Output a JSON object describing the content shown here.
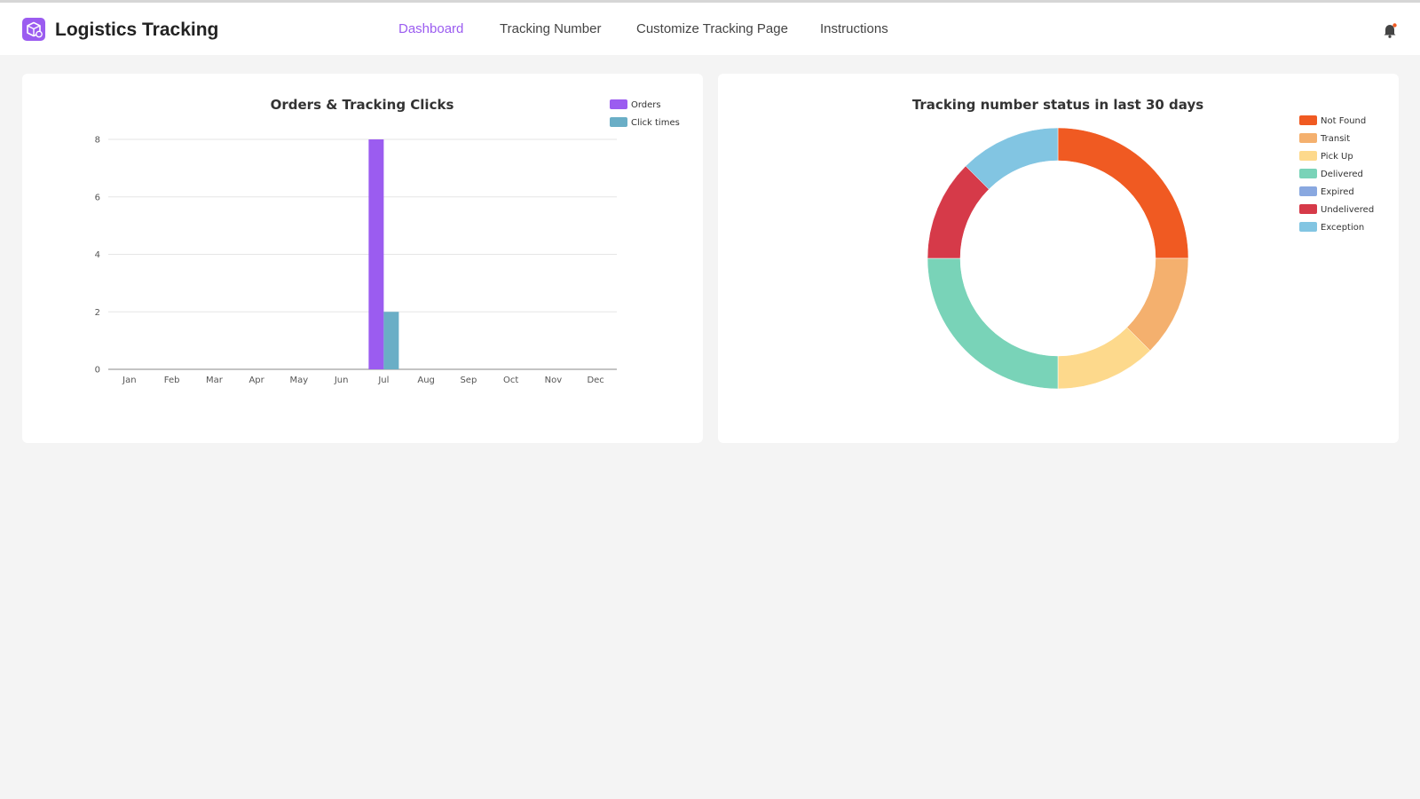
{
  "header": {
    "app_title": "Logistics Tracking",
    "logo_icon": "package-icon",
    "notification_icon": "bell-icon",
    "nav": [
      {
        "label": "Dashboard",
        "active": true
      },
      {
        "label": "Tracking Number",
        "active": false
      },
      {
        "label": "Customize Tracking Page",
        "active": false
      },
      {
        "label": "Instructions",
        "active": false
      }
    ]
  },
  "colors": {
    "accent": "#9b5cf0",
    "orders": "#9b5cf0",
    "click_times": "#6aaec6",
    "not_found": "#f05a22",
    "transit": "#f4b06e",
    "pick_up": "#fdd98c",
    "delivered": "#79d3b8",
    "expired": "#89a8e0",
    "undelivered": "#d63a49",
    "exception": "#82c5e2"
  },
  "chart_data": [
    {
      "type": "bar",
      "title": "Orders & Tracking Clicks",
      "categories": [
        "Jan",
        "Feb",
        "Mar",
        "Apr",
        "May",
        "Jun",
        "Jul",
        "Aug",
        "Sep",
        "Oct",
        "Nov",
        "Dec"
      ],
      "series": [
        {
          "name": "Orders",
          "values": [
            0,
            0,
            0,
            0,
            0,
            0,
            8,
            0,
            0,
            0,
            0,
            0
          ]
        },
        {
          "name": "Click times",
          "values": [
            0,
            0,
            0,
            0,
            0,
            0,
            2,
            0,
            0,
            0,
            0,
            0
          ]
        }
      ],
      "yticks": [
        0,
        2,
        4,
        6,
        8
      ],
      "ylim": [
        0,
        8
      ],
      "grid": true,
      "legend": "top-right"
    },
    {
      "type": "pie",
      "title": "Tracking number status in last 30 days",
      "donut": true,
      "labels": [
        "Not Found",
        "Transit",
        "Pick Up",
        "Delivered",
        "Expired",
        "Undelivered",
        "Exception"
      ],
      "values": [
        2,
        1,
        1,
        2,
        0,
        1,
        1
      ],
      "legend": "top-right"
    }
  ]
}
